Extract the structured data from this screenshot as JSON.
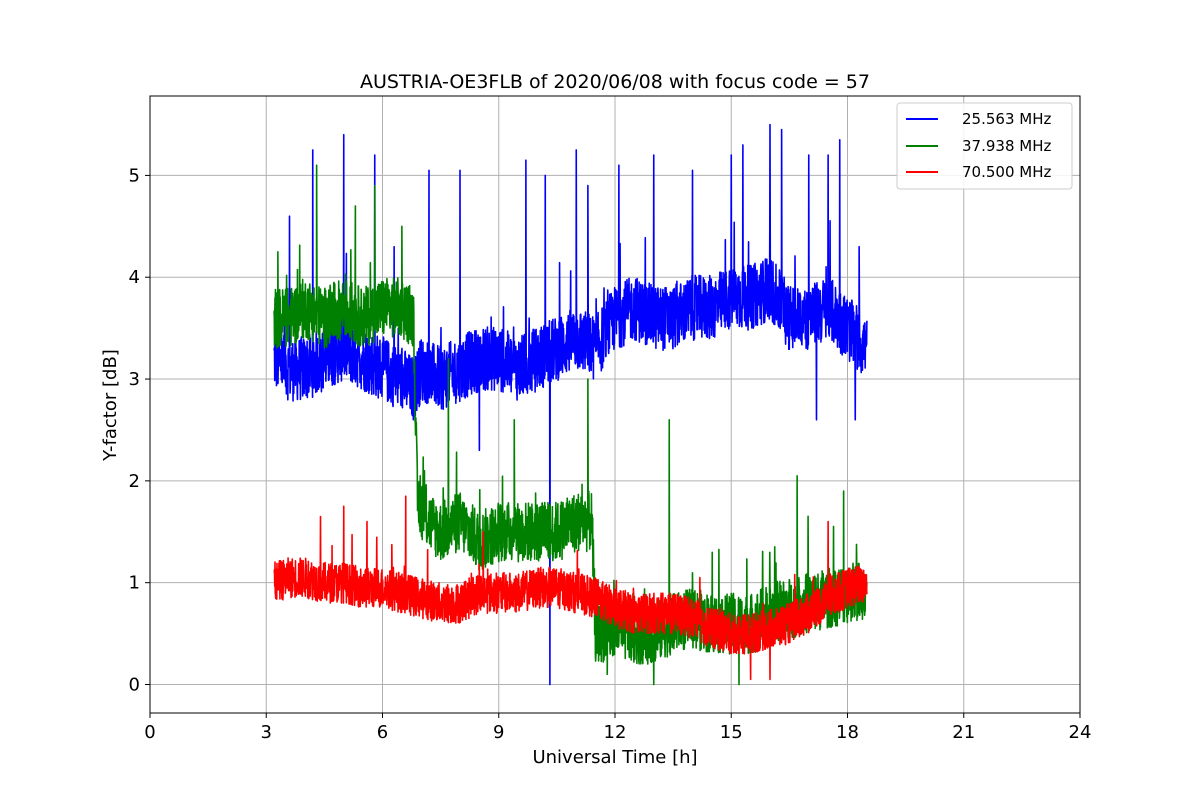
{
  "chart_data": {
    "type": "line",
    "title": "AUSTRIA-OE3FLB of 2020/06/08 with focus code = 57",
    "xlabel": "Universal Time [h]",
    "ylabel": "Y-factor [dB]",
    "xlim": [
      0,
      24
    ],
    "ylim": [
      -0.28,
      5.78
    ],
    "xticks": [
      0,
      3,
      6,
      9,
      12,
      15,
      18,
      21,
      24
    ],
    "xtick_labels": [
      "0",
      "3",
      "6",
      "9",
      "12",
      "15",
      "18",
      "21",
      "24"
    ],
    "yticks": [
      0,
      1,
      2,
      3,
      4,
      5
    ],
    "ytick_labels": [
      "0",
      "1",
      "2",
      "3",
      "4",
      "5"
    ],
    "grid": true,
    "legend_position": "top-right",
    "series": [
      {
        "name": "25.563 MHz",
        "color": "#0000ff",
        "x": [
          3.2,
          3.6,
          4.0,
          4.5,
          5.0,
          5.5,
          6.0,
          6.5,
          6.8,
          7.0,
          7.5,
          8.0,
          8.5,
          9.0,
          9.5,
          10.0,
          10.5,
          11.0,
          11.5,
          12.0,
          12.5,
          13.0,
          13.5,
          14.0,
          14.5,
          15.0,
          15.5,
          16.0,
          16.5,
          17.0,
          17.5,
          18.0,
          18.5
        ],
        "values": [
          3.2,
          3.1,
          3.1,
          3.2,
          3.3,
          3.2,
          3.1,
          3.0,
          2.9,
          3.1,
          3.0,
          3.1,
          3.2,
          3.2,
          3.1,
          3.2,
          3.3,
          3.4,
          3.3,
          3.6,
          3.7,
          3.6,
          3.6,
          3.7,
          3.7,
          3.8,
          3.8,
          3.9,
          3.6,
          3.6,
          3.7,
          3.5,
          3.3
        ],
        "noise": 0.32,
        "spikes": [
          [
            3.6,
            4.6
          ],
          [
            4.2,
            5.25
          ],
          [
            5.0,
            5.4
          ],
          [
            5.8,
            5.2
          ],
          [
            6.3,
            4.3
          ],
          [
            7.2,
            5.05
          ],
          [
            8.0,
            5.05
          ],
          [
            9.7,
            5.15
          ],
          [
            10.2,
            5.0
          ],
          [
            11.0,
            5.25
          ],
          [
            11.3,
            4.9
          ],
          [
            12.1,
            5.1
          ],
          [
            13.0,
            5.2
          ],
          [
            14.0,
            5.05
          ],
          [
            15.0,
            5.2
          ],
          [
            15.3,
            5.3
          ],
          [
            16.0,
            5.5
          ],
          [
            16.3,
            5.45
          ],
          [
            17.0,
            5.2
          ],
          [
            17.5,
            5.2
          ],
          [
            17.8,
            5.35
          ],
          [
            18.3,
            4.3
          ]
        ],
        "dips": [
          [
            8.5,
            2.3
          ],
          [
            10.32,
            0.0
          ],
          [
            17.2,
            2.6
          ],
          [
            18.2,
            2.6
          ]
        ]
      },
      {
        "name": "37.938 MHz",
        "color": "#008000",
        "x": [
          3.2,
          3.6,
          4.0,
          4.5,
          5.0,
          5.5,
          6.0,
          6.5,
          6.8,
          6.9,
          7.2,
          7.5,
          8.0,
          8.5,
          9.0,
          9.5,
          10.0,
          10.5,
          11.0,
          11.4,
          11.5,
          12.0,
          12.5,
          13.0,
          13.5,
          14.0,
          14.5,
          15.0,
          15.5,
          16.0,
          16.5,
          17.0,
          17.5,
          18.0,
          18.5
        ],
        "values": [
          3.6,
          3.6,
          3.7,
          3.6,
          3.7,
          3.6,
          3.7,
          3.7,
          3.6,
          1.8,
          1.6,
          1.5,
          1.6,
          1.4,
          1.5,
          1.5,
          1.5,
          1.5,
          1.6,
          1.6,
          0.5,
          0.55,
          0.5,
          0.5,
          0.6,
          0.65,
          0.6,
          0.6,
          0.6,
          0.7,
          0.75,
          0.8,
          0.85,
          0.9,
          0.95
        ],
        "noise": 0.3,
        "spikes": [
          [
            3.3,
            4.25
          ],
          [
            4.3,
            5.1
          ],
          [
            5.3,
            4.7
          ],
          [
            5.8,
            4.9
          ],
          [
            6.5,
            4.5
          ],
          [
            7.7,
            3.2
          ],
          [
            9.4,
            2.6
          ],
          [
            11.3,
            3.0
          ],
          [
            13.4,
            2.6
          ],
          [
            16.7,
            2.05
          ],
          [
            17.9,
            1.9
          ]
        ],
        "dips": [
          [
            11.8,
            0.1
          ],
          [
            13.0,
            0.0
          ],
          [
            15.2,
            0.0
          ]
        ]
      },
      {
        "name": "70.500 MHz",
        "color": "#ff0000",
        "x": [
          3.2,
          3.6,
          4.0,
          4.5,
          5.0,
          5.5,
          6.0,
          6.5,
          7.0,
          7.5,
          8.0,
          8.5,
          9.0,
          9.5,
          10.0,
          10.5,
          11.0,
          11.5,
          12.0,
          12.5,
          13.0,
          13.5,
          14.0,
          14.5,
          15.0,
          15.5,
          16.0,
          16.5,
          17.0,
          17.5,
          18.0,
          18.5
        ],
        "values": [
          1.0,
          1.05,
          1.05,
          1.0,
          1.0,
          0.95,
          0.95,
          0.9,
          0.85,
          0.8,
          0.8,
          0.9,
          0.9,
          0.9,
          0.95,
          0.95,
          0.9,
          0.85,
          0.75,
          0.7,
          0.7,
          0.7,
          0.65,
          0.55,
          0.5,
          0.5,
          0.55,
          0.6,
          0.7,
          0.85,
          0.95,
          1.0
        ],
        "noise": 0.2,
        "spikes": [
          [
            4.4,
            1.65
          ],
          [
            5.0,
            1.75
          ],
          [
            5.6,
            1.6
          ],
          [
            6.6,
            1.85
          ],
          [
            8.6,
            1.5
          ],
          [
            17.5,
            1.6
          ]
        ],
        "dips": [
          [
            15.5,
            0.05
          ],
          [
            16.0,
            0.05
          ]
        ]
      }
    ]
  }
}
